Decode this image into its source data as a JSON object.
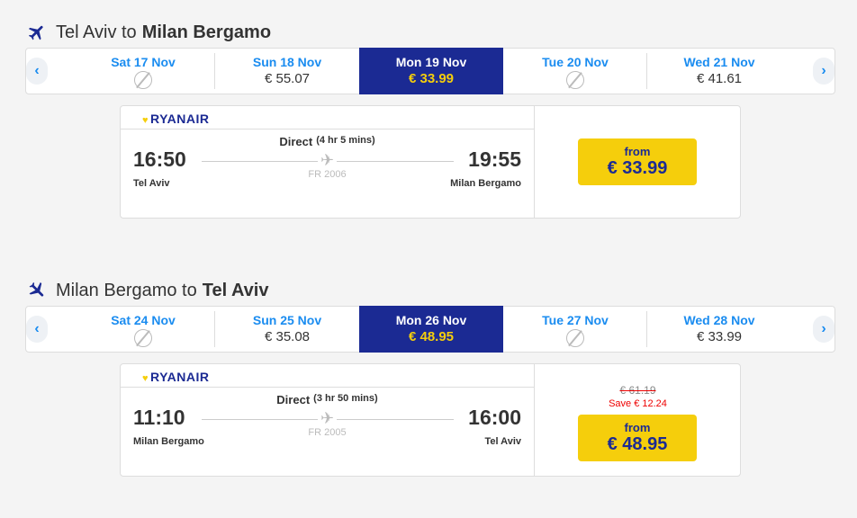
{
  "colors": {
    "brand": "#1b2a93",
    "accent": "#f5ce0c",
    "link": "#1a8cf0",
    "discount": "#e00000"
  },
  "outbound": {
    "title_from": "Tel Aviv to",
    "title_to": "Milan Bergamo",
    "days": [
      {
        "date": "Sat 17 Nov",
        "price": null,
        "no_flight": true
      },
      {
        "date": "Sun 18 Nov",
        "price": "€ 55.07"
      },
      {
        "date": "Mon 19 Nov",
        "price": "€ 33.99",
        "selected": true
      },
      {
        "date": "Tue 20 Nov",
        "price": null,
        "no_flight": true
      },
      {
        "date": "Wed 21 Nov",
        "price": "€ 41.61"
      }
    ],
    "flight": {
      "airline": "RYANAIR",
      "direct": "Direct",
      "duration": "(4 hr 5 mins)",
      "depart_time": "16:50",
      "arrive_time": "19:55",
      "depart_city": "Tel Aviv",
      "arrive_city": "Milan Bergamo",
      "flight_no": "FR 2006",
      "from_label": "from",
      "price": "€ 33.99"
    }
  },
  "inbound": {
    "title_from": "Milan Bergamo to",
    "title_to": "Tel Aviv",
    "days": [
      {
        "date": "Sat 24 Nov",
        "price": null,
        "no_flight": true
      },
      {
        "date": "Sun 25 Nov",
        "price": "€ 35.08"
      },
      {
        "date": "Mon 26 Nov",
        "price": "€ 48.95",
        "selected": true
      },
      {
        "date": "Tue 27 Nov",
        "price": null,
        "no_flight": true
      },
      {
        "date": "Wed 28 Nov",
        "price": "€ 33.99"
      }
    ],
    "flight": {
      "airline": "RYANAIR",
      "direct": "Direct",
      "duration": "(3 hr 50 mins)",
      "depart_time": "11:10",
      "arrive_time": "16:00",
      "depart_city": "Milan Bergamo",
      "arrive_city": "Tel Aviv",
      "flight_no": "FR 2005",
      "old_price": "€ 61.19",
      "save": "Save € 12.24",
      "from_label": "from",
      "price": "€ 48.95"
    }
  }
}
